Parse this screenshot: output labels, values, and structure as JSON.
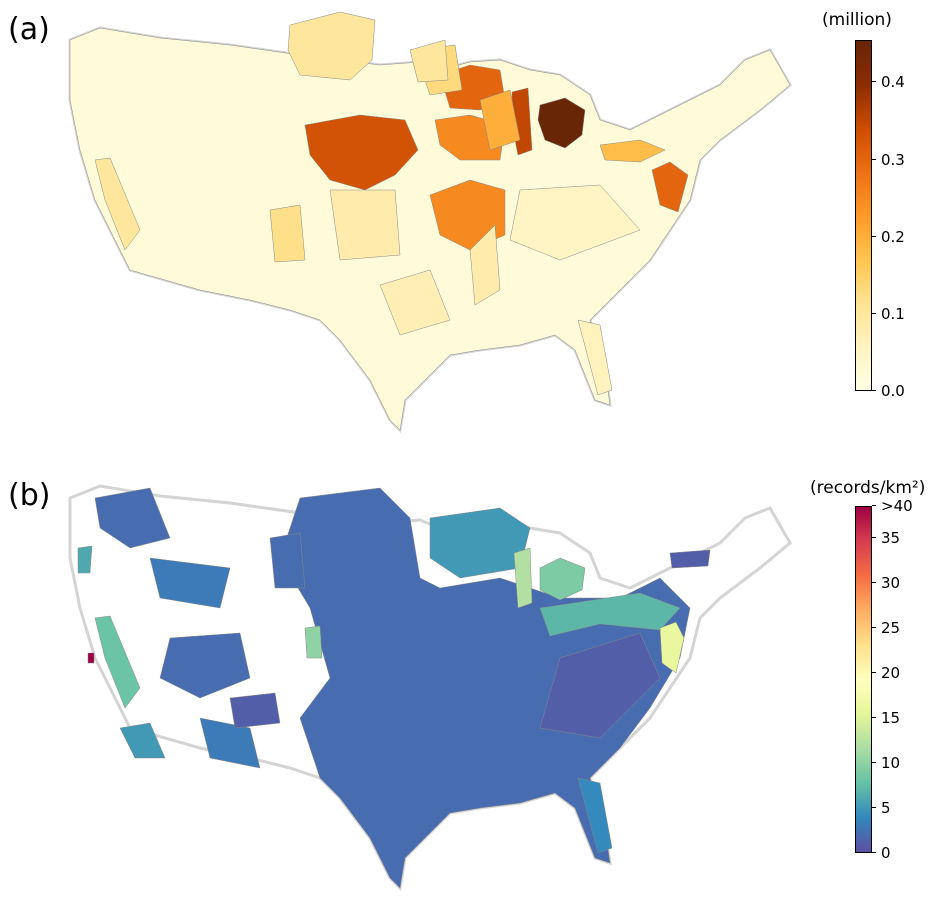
{
  "panels": [
    {
      "label": "(a)",
      "colorbar": {
        "title": "(million)",
        "colormap": [
          "#ffffe5",
          "#fff3c0",
          "#fee391",
          "#fec44f",
          "#fe9929",
          "#ec7014",
          "#cc4c02",
          "#8c2d04",
          "#662506"
        ],
        "min": 0,
        "max": 0.455,
        "ticks": [
          {
            "v": 0,
            "label": "0.0"
          },
          {
            "v": 0.1,
            "label": "0.1"
          },
          {
            "v": 0.2,
            "label": "0.2"
          },
          {
            "v": 0.3,
            "label": "0.3"
          },
          {
            "v": 0.4,
            "label": "0.4"
          }
        ]
      },
      "region_values": [
        0.02,
        0.1,
        0.33,
        0.3,
        0.25,
        0.25,
        0.35,
        0.45,
        0.13,
        0.08,
        0.08,
        0.3,
        0.18,
        0.1,
        0.06,
        0.1,
        0.12,
        0.05,
        0.07,
        0.2
      ]
    },
    {
      "label": "(b)",
      "colorbar": {
        "title": "(records/km²)",
        "colormap": [
          "#5e4fa2",
          "#3288bd",
          "#66c2a5",
          "#abdda4",
          "#e6f598",
          "#ffffbf",
          "#fee08b",
          "#fdae61",
          "#f46d43",
          "#d53e4f",
          "#9e0142"
        ],
        "min": 0,
        "max": 38.5,
        "ticks": [
          {
            "v": 0,
            "label": "0"
          },
          {
            "v": 5,
            "label": "5"
          },
          {
            "v": 10,
            "label": "10"
          },
          {
            "v": 15,
            "label": "15"
          },
          {
            "v": 20,
            "label": "20"
          },
          {
            "v": 25,
            "label": "25"
          },
          {
            "v": 30,
            "label": "30"
          },
          {
            "v": 35,
            "label": "35"
          },
          {
            "v": 38.5,
            "label": ">40"
          }
        ]
      },
      "region_values": [
        2,
        7,
        1,
        5,
        9,
        12,
        16,
        4,
        2,
        3,
        8,
        40,
        2,
        10,
        1,
        6,
        2,
        3,
        5,
        1
      ]
    }
  ]
}
